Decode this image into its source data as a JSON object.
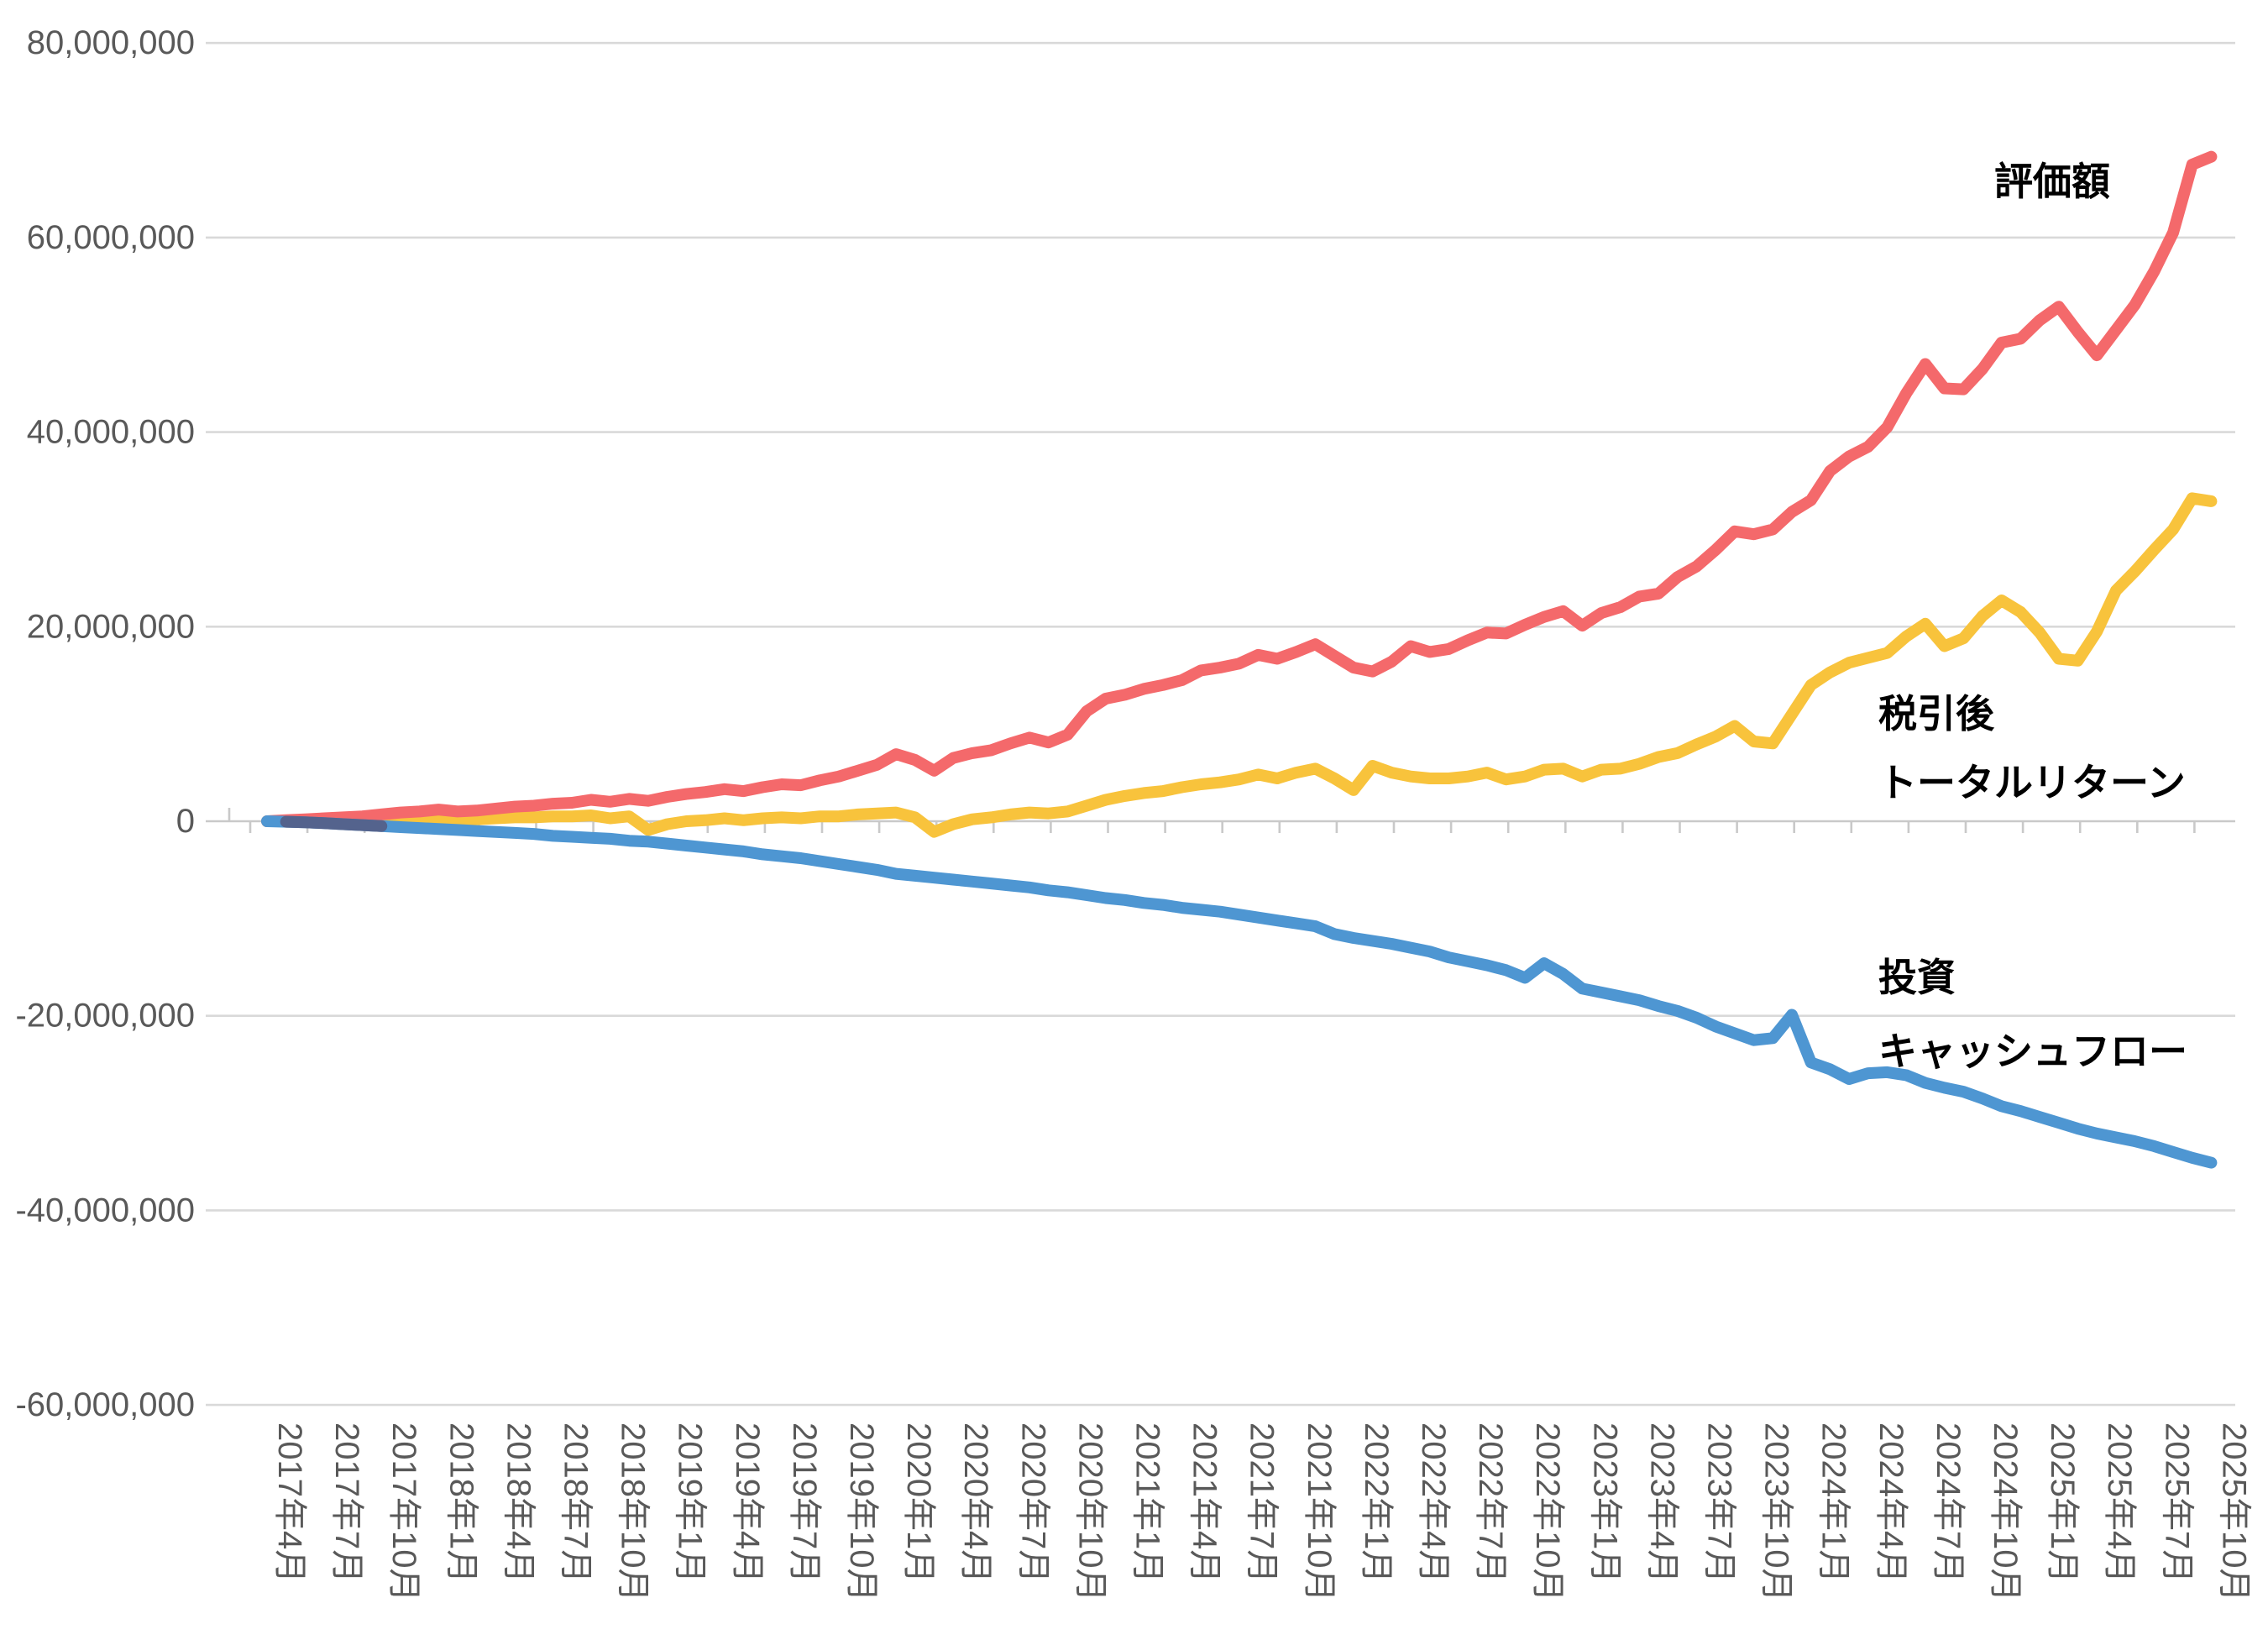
{
  "chart_data": {
    "type": "line",
    "x_start_month": "2017年4月",
    "x_end_month": "2025年10月",
    "x_interval": "monthly (103 points), axis labels every 3 months",
    "x_tick_labels": [
      "2017年4月",
      "2017年7月",
      "2017年10月",
      "2018年1月",
      "2018年4月",
      "2018年7月",
      "2018年10月",
      "2019年1月",
      "2019年4月",
      "2019年7月",
      "2019年10月",
      "2020年1月",
      "2020年4月",
      "2020年7月",
      "2020年10月",
      "2021年1月",
      "2021年4月",
      "2021年7月",
      "2021年10月",
      "2022年1月",
      "2022年4月",
      "2022年7月",
      "2022年10月",
      "2023年1月",
      "2023年4月",
      "2023年7月",
      "2023年10月",
      "2024年1月",
      "2024年4月",
      "2024年7月",
      "2024年10月",
      "2025年1月",
      "2025年4月",
      "2025年7月",
      "2025年10月"
    ],
    "y_tick_labels": [
      "80,000,000",
      "60,000,000",
      "40,000,000",
      "20,000,000",
      "0",
      "-20,000,000",
      "-40,000,000",
      "-60,000,000"
    ],
    "ylim": [
      -60000000,
      80000000
    ],
    "y_gridline_step": 20000000,
    "grid": "horizontal gridlines only",
    "legend": "none — series labeled directly on plot",
    "unit": "JPY (values stored in millions)",
    "series": [
      {
        "name": "評価額",
        "label_lines": [
          "評価額"
        ],
        "color": "#F4696B",
        "values_million": [
          0.0,
          0.1,
          0.2,
          0.3,
          0.4,
          0.5,
          0.7,
          0.9,
          1.0,
          1.2,
          1.0,
          1.1,
          1.3,
          1.5,
          1.6,
          1.8,
          1.9,
          2.2,
          2.0,
          2.3,
          2.1,
          2.5,
          2.8,
          3.0,
          3.3,
          3.1,
          3.5,
          3.8,
          3.7,
          4.2,
          4.6,
          5.2,
          5.8,
          6.9,
          6.3,
          5.2,
          6.5,
          7.0,
          7.3,
          8.0,
          8.6,
          8.1,
          8.9,
          11.3,
          12.6,
          13.0,
          13.6,
          14.0,
          14.5,
          15.5,
          15.8,
          16.2,
          17.1,
          16.7,
          17.4,
          18.2,
          17.0,
          15.8,
          15.4,
          16.4,
          18.0,
          17.4,
          17.7,
          18.6,
          19.4,
          19.3,
          20.2,
          21.0,
          21.6,
          20.1,
          21.4,
          22.0,
          23.1,
          23.4,
          25.1,
          26.2,
          27.9,
          29.8,
          29.5,
          30.0,
          31.8,
          33.0,
          36.0,
          37.5,
          38.5,
          40.5,
          44.0,
          47.0,
          44.5,
          44.4,
          46.5,
          49.2,
          49.6,
          51.5,
          52.9,
          50.3,
          47.9,
          50.5,
          53.1,
          56.5,
          60.5,
          67.5,
          68.3
        ]
      },
      {
        "name": "税引後トータルリターン",
        "label_lines": [
          "税引後",
          "トータルリターン"
        ],
        "color": "#F8C33C",
        "values_million": [
          0.0,
          0.0,
          0.1,
          0.1,
          0.1,
          0.2,
          0.2,
          0.3,
          0.3,
          0.4,
          0.2,
          0.2,
          0.3,
          0.4,
          0.4,
          0.5,
          0.5,
          0.6,
          0.3,
          0.5,
          -0.9,
          -0.3,
          0.0,
          0.1,
          0.3,
          0.1,
          0.3,
          0.4,
          0.3,
          0.5,
          0.5,
          0.7,
          0.8,
          0.9,
          0.4,
          -1.1,
          -0.3,
          0.2,
          0.4,
          0.7,
          0.9,
          0.8,
          1.0,
          1.6,
          2.2,
          2.6,
          2.9,
          3.1,
          3.5,
          3.8,
          4.0,
          4.3,
          4.8,
          4.4,
          5.0,
          5.4,
          4.4,
          3.2,
          5.7,
          5.0,
          4.6,
          4.4,
          4.4,
          4.6,
          5.0,
          4.3,
          4.6,
          5.3,
          5.4,
          4.6,
          5.3,
          5.4,
          5.9,
          6.6,
          7.0,
          7.9,
          8.7,
          9.8,
          8.2,
          8.0,
          11.0,
          14.0,
          15.3,
          16.3,
          16.8,
          17.3,
          19.0,
          20.3,
          18.0,
          18.8,
          21.1,
          22.7,
          21.5,
          19.4,
          16.7,
          16.5,
          19.5,
          23.7,
          25.7,
          27.9,
          30.0,
          33.2,
          32.9
        ]
      },
      {
        "name": "投資キャッシュフロー",
        "label_lines": [
          "投資",
          "キャッシュフロー"
        ],
        "color": "#4E96D2",
        "values_million": [
          0.0,
          -0.05,
          -0.1,
          -0.2,
          -0.3,
          -0.4,
          -0.5,
          -0.6,
          -0.7,
          -0.8,
          -0.9,
          -1.0,
          -1.1,
          -1.2,
          -1.3,
          -1.5,
          -1.6,
          -1.7,
          -1.8,
          -2.0,
          -2.1,
          -2.3,
          -2.5,
          -2.7,
          -2.9,
          -3.1,
          -3.4,
          -3.6,
          -3.8,
          -4.1,
          -4.4,
          -4.7,
          -5.0,
          -5.4,
          -5.6,
          -5.8,
          -6.0,
          -6.2,
          -6.4,
          -6.6,
          -6.8,
          -7.1,
          -7.3,
          -7.6,
          -7.9,
          -8.1,
          -8.4,
          -8.6,
          -8.9,
          -9.1,
          -9.3,
          -9.6,
          -9.9,
          -10.2,
          -10.5,
          -10.8,
          -11.6,
          -12.0,
          -12.3,
          -12.6,
          -13.0,
          -13.4,
          -14.0,
          -14.4,
          -14.8,
          -15.3,
          -16.1,
          -14.6,
          -15.7,
          -17.2,
          -17.6,
          -18.0,
          -18.4,
          -19.0,
          -19.5,
          -20.2,
          -21.1,
          -21.8,
          -22.5,
          -22.3,
          -19.9,
          -24.8,
          -25.5,
          -26.5,
          -25.9,
          -25.8,
          -26.1,
          -26.9,
          -27.4,
          -27.8,
          -28.5,
          -29.3,
          -29.8,
          -30.4,
          -31.0,
          -31.6,
          -32.1,
          -32.5,
          -32.9,
          -33.4,
          -34.0,
          -34.6,
          -35.1
        ]
      }
    ],
    "colors": {
      "gridline": "#D9D9D9",
      "axis_line": "#C9C9C9",
      "axis_text": "#595959",
      "series_label_text": "#000000",
      "start_overlap": "#54638D",
      "background": "#FFFFFF"
    }
  }
}
